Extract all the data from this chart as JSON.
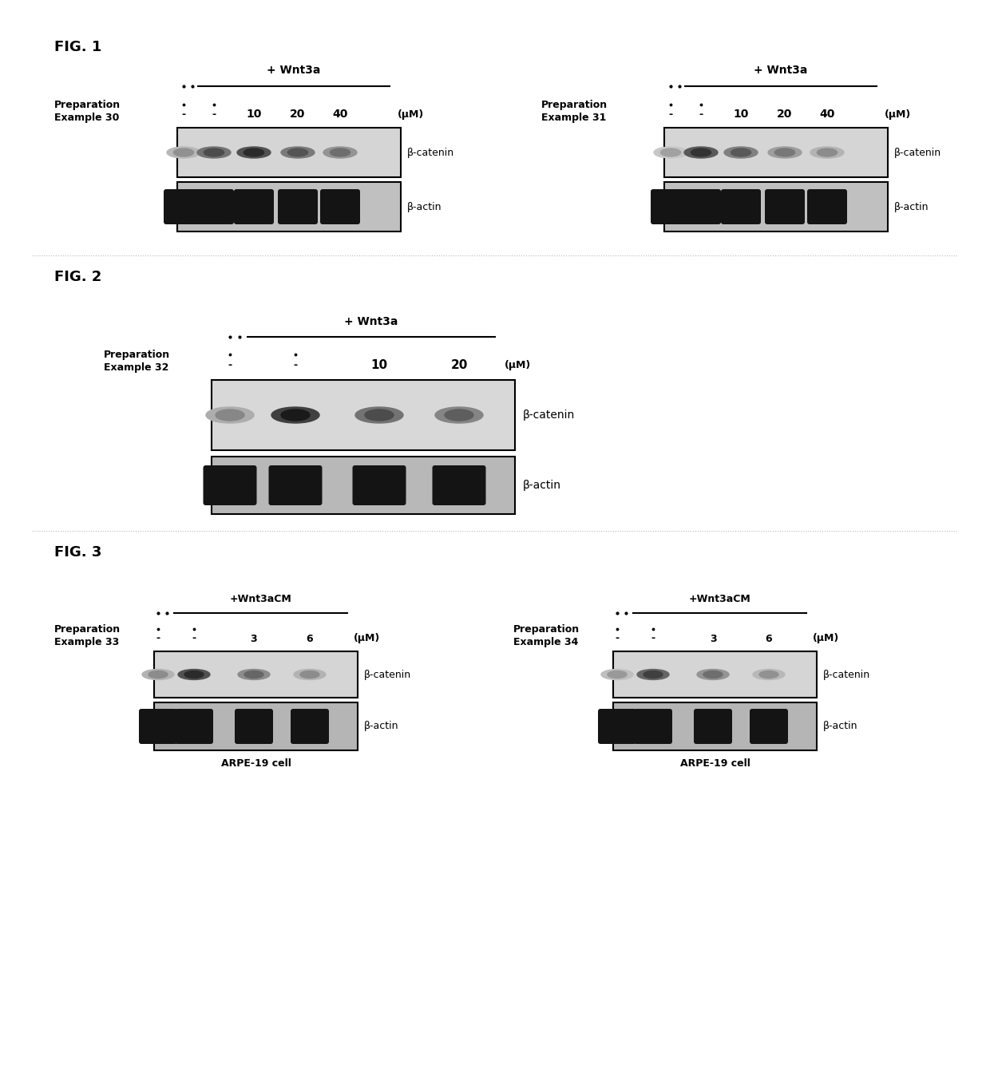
{
  "fig1": {
    "label": "FIG. 1",
    "left_panel": {
      "wnt3a_label": "+ Wnt3a",
      "prep_label": "Preparation\nExample 30",
      "concentrations": [
        "-",
        "-",
        "10",
        "20",
        "40"
      ],
      "unit": "(μM)",
      "blot1_label": "β-catenin",
      "blot2_label": "β-actin"
    },
    "right_panel": {
      "wnt3a_label": "+ Wnt3a",
      "prep_label": "Preparation\nExample 31",
      "concentrations": [
        "-",
        "-",
        "10",
        "20",
        "40"
      ],
      "unit": "(μM)",
      "blot1_label": "β-catenin",
      "blot2_label": "β-actin"
    }
  },
  "fig2": {
    "label": "FIG. 2",
    "wnt3a_label": "+ Wnt3a",
    "prep_label": "Preparation\nExample 32",
    "concentrations": [
      "-",
      "-",
      "10",
      "20"
    ],
    "unit": "(μM)",
    "blot1_label": "β-catenin",
    "blot2_label": "β-actin"
  },
  "fig3": {
    "label": "FIG. 3",
    "left_panel": {
      "wnt3acm_label": "+Wnt3aCM",
      "prep_label": "Preparation\nExample 33",
      "concentrations": [
        "-",
        "-",
        "3",
        "6"
      ],
      "unit": "(μM)",
      "blot1_label": "β-catenin",
      "blot2_label": "β-actin",
      "cell_label": "ARPE-19 cell"
    },
    "right_panel": {
      "wnt3acm_label": "+Wnt3aCM",
      "prep_label": "Preparation\nExample 34",
      "concentrations": [
        "-",
        "-",
        "3",
        "6"
      ],
      "unit": "(μM)",
      "blot1_label": "β-catenin",
      "blot2_label": "β-actin",
      "cell_label": "ARPE-19 cell"
    }
  },
  "bg_color": "#ffffff",
  "text_color": "#000000"
}
